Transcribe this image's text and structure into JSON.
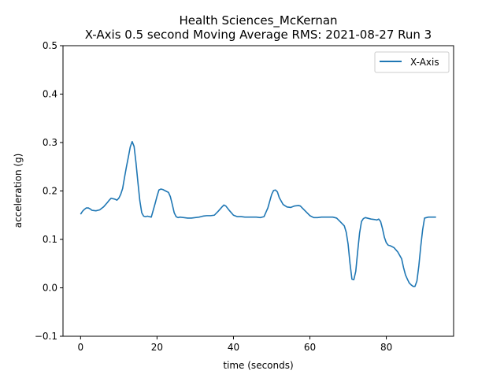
{
  "chart_data": {
    "type": "line",
    "title_line1": "Health Sciences_McKernan",
    "title_line2": "X-Axis 0.5 second Moving Average RMS: 2021-08-27 Run 3",
    "xlabel": "time (seconds)",
    "ylabel": "acceleration (g)",
    "xlim": [
      -4.6,
      97.6
    ],
    "ylim": [
      -0.1,
      0.5
    ],
    "xticks": [
      0,
      20,
      40,
      60,
      80
    ],
    "yticks": [
      -0.1,
      0.0,
      0.1,
      0.2,
      0.3,
      0.4,
      0.5
    ],
    "xtick_labels": [
      "0",
      "20",
      "40",
      "60",
      "80"
    ],
    "ytick_labels": [
      "−0.1",
      "0.0",
      "0.1",
      "0.2",
      "0.3",
      "0.4",
      "0.5"
    ],
    "grid": false,
    "legend_position": "top-right",
    "series": [
      {
        "name": "X-Axis",
        "color": "#1f77b4",
        "points": [
          [
            0.0,
            0.152
          ],
          [
            0.5,
            0.158
          ],
          [
            1.0,
            0.162
          ],
          [
            1.5,
            0.165
          ],
          [
            2.0,
            0.165
          ],
          [
            2.5,
            0.163
          ],
          [
            3.0,
            0.16
          ],
          [
            4.0,
            0.159
          ],
          [
            5.0,
            0.161
          ],
          [
            6.0,
            0.167
          ],
          [
            7.0,
            0.176
          ],
          [
            7.5,
            0.181
          ],
          [
            8.0,
            0.185
          ],
          [
            9.0,
            0.183
          ],
          [
            9.5,
            0.181
          ],
          [
            10.0,
            0.185
          ],
          [
            10.5,
            0.193
          ],
          [
            11.0,
            0.205
          ],
          [
            11.5,
            0.228
          ],
          [
            12.0,
            0.25
          ],
          [
            12.5,
            0.27
          ],
          [
            13.0,
            0.291
          ],
          [
            13.5,
            0.302
          ],
          [
            14.0,
            0.292
          ],
          [
            14.5,
            0.258
          ],
          [
            15.0,
            0.218
          ],
          [
            15.5,
            0.18
          ],
          [
            16.0,
            0.155
          ],
          [
            16.5,
            0.148
          ],
          [
            17.0,
            0.147
          ],
          [
            17.5,
            0.148
          ],
          [
            18.0,
            0.147
          ],
          [
            18.5,
            0.146
          ],
          [
            19.0,
            0.16
          ],
          [
            19.5,
            0.174
          ],
          [
            20.0,
            0.189
          ],
          [
            20.5,
            0.202
          ],
          [
            21.0,
            0.204
          ],
          [
            21.5,
            0.203
          ],
          [
            22.0,
            0.201
          ],
          [
            22.5,
            0.199
          ],
          [
            23.0,
            0.197
          ],
          [
            23.5,
            0.188
          ],
          [
            24.0,
            0.172
          ],
          [
            24.5,
            0.155
          ],
          [
            25.0,
            0.147
          ],
          [
            25.5,
            0.145
          ],
          [
            26.0,
            0.146
          ],
          [
            27.0,
            0.145
          ],
          [
            28.0,
            0.144
          ],
          [
            29.0,
            0.144
          ],
          [
            30.0,
            0.145
          ],
          [
            31.0,
            0.146
          ],
          [
            32.0,
            0.148
          ],
          [
            33.0,
            0.149
          ],
          [
            34.0,
            0.149
          ],
          [
            35.0,
            0.15
          ],
          [
            36.0,
            0.158
          ],
          [
            37.0,
            0.167
          ],
          [
            37.5,
            0.171
          ],
          [
            38.0,
            0.169
          ],
          [
            39.0,
            0.159
          ],
          [
            40.0,
            0.15
          ],
          [
            41.0,
            0.147
          ],
          [
            42.0,
            0.147
          ],
          [
            43.0,
            0.146
          ],
          [
            44.0,
            0.146
          ],
          [
            45.0,
            0.146
          ],
          [
            46.0,
            0.146
          ],
          [
            47.0,
            0.145
          ],
          [
            48.0,
            0.147
          ],
          [
            49.0,
            0.165
          ],
          [
            50.0,
            0.193
          ],
          [
            50.5,
            0.201
          ],
          [
            51.0,
            0.202
          ],
          [
            51.5,
            0.198
          ],
          [
            52.0,
            0.186
          ],
          [
            53.0,
            0.172
          ],
          [
            54.0,
            0.167
          ],
          [
            55.0,
            0.166
          ],
          [
            56.0,
            0.169
          ],
          [
            57.0,
            0.17
          ],
          [
            57.5,
            0.169
          ],
          [
            58.0,
            0.165
          ],
          [
            59.0,
            0.157
          ],
          [
            60.0,
            0.149
          ],
          [
            61.0,
            0.145
          ],
          [
            62.0,
            0.145
          ],
          [
            63.0,
            0.146
          ],
          [
            64.0,
            0.146
          ],
          [
            65.0,
            0.146
          ],
          [
            66.0,
            0.146
          ],
          [
            67.0,
            0.144
          ],
          [
            68.0,
            0.136
          ],
          [
            69.0,
            0.128
          ],
          [
            69.5,
            0.115
          ],
          [
            70.0,
            0.09
          ],
          [
            70.5,
            0.05
          ],
          [
            71.0,
            0.018
          ],
          [
            71.5,
            0.017
          ],
          [
            72.0,
            0.034
          ],
          [
            72.5,
            0.075
          ],
          [
            73.0,
            0.113
          ],
          [
            73.5,
            0.137
          ],
          [
            74.0,
            0.143
          ],
          [
            74.5,
            0.145
          ],
          [
            75.0,
            0.144
          ],
          [
            76.0,
            0.142
          ],
          [
            77.0,
            0.141
          ],
          [
            77.5,
            0.14
          ],
          [
            78.0,
            0.142
          ],
          [
            78.5,
            0.137
          ],
          [
            79.0,
            0.122
          ],
          [
            79.5,
            0.104
          ],
          [
            80.0,
            0.093
          ],
          [
            80.5,
            0.088
          ],
          [
            81.0,
            0.087
          ],
          [
            82.0,
            0.083
          ],
          [
            83.0,
            0.074
          ],
          [
            84.0,
            0.06
          ],
          [
            84.5,
            0.042
          ],
          [
            85.0,
            0.027
          ],
          [
            85.5,
            0.018
          ],
          [
            86.0,
            0.01
          ],
          [
            86.5,
            0.006
          ],
          [
            87.0,
            0.003
          ],
          [
            87.5,
            0.003
          ],
          [
            88.0,
            0.014
          ],
          [
            88.5,
            0.045
          ],
          [
            89.0,
            0.085
          ],
          [
            89.5,
            0.12
          ],
          [
            90.0,
            0.144
          ],
          [
            91.0,
            0.146
          ],
          [
            92.0,
            0.146
          ],
          [
            93.0,
            0.146
          ]
        ]
      }
    ]
  }
}
